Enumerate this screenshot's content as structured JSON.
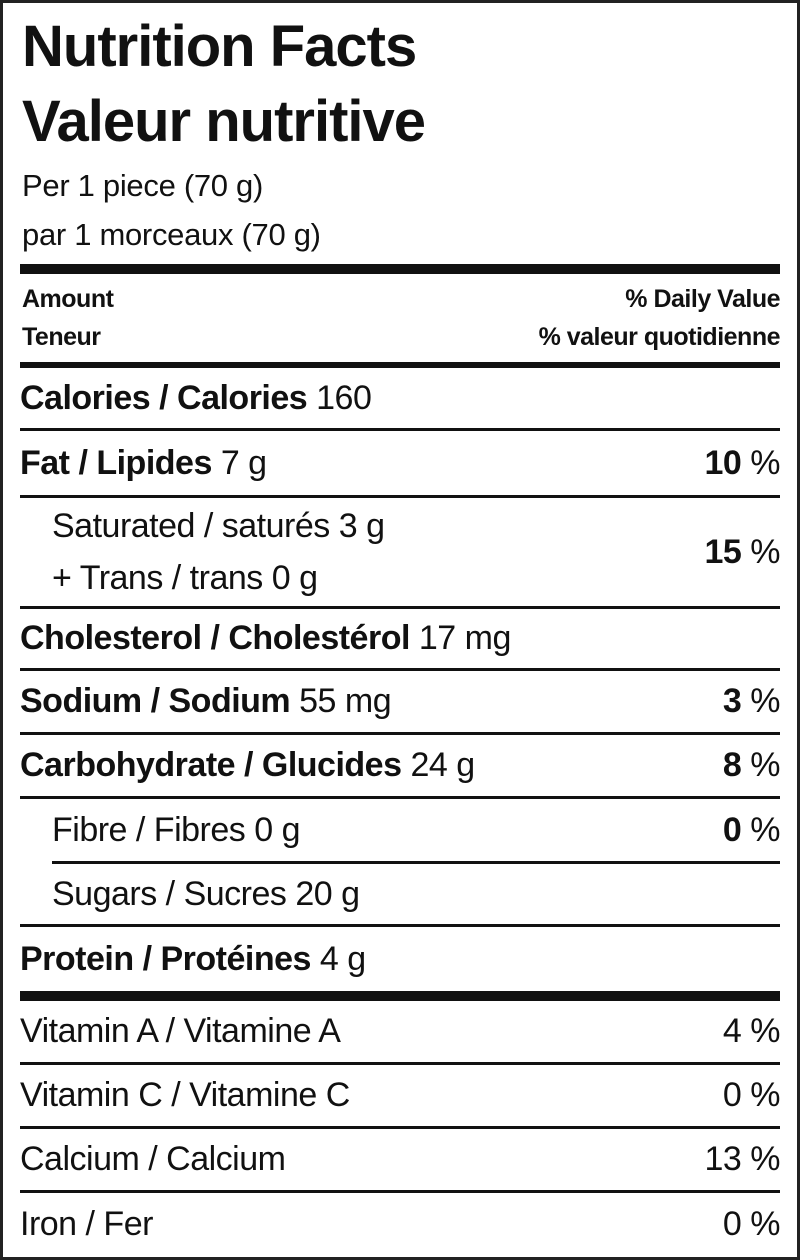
{
  "title_en": "Nutrition Facts",
  "title_fr": "Valeur nutritive",
  "serving_en": "Per 1 piece (70 g)",
  "serving_fr": "par 1 morceaux (70 g)",
  "header": {
    "amount_en": "Amount",
    "amount_fr": "Teneur",
    "dv_en": "% Daily Value",
    "dv_fr": "% valeur quotidienne"
  },
  "calories": {
    "label": "Calories / Calories",
    "value": "160"
  },
  "nutrients": [
    {
      "label": "Fat / Lipides",
      "amount": "7 g",
      "dv": "10",
      "unit": "%"
    },
    {
      "label": "Saturated / saturés",
      "amount": "3 g",
      "label2": "+ Trans / trans",
      "amount2": "0 g",
      "dv": "15",
      "unit": "%"
    },
    {
      "label": "Cholesterol / Cholestérol",
      "amount": "17 mg"
    },
    {
      "label": "Sodium / Sodium",
      "amount": "55 mg",
      "dv": "3",
      "unit": "%"
    },
    {
      "label": "Carbohydrate / Glucides",
      "amount": "24 g",
      "dv": "8",
      "unit": "%"
    },
    {
      "label": "Fibre / Fibres",
      "amount": "0 g",
      "dv": "0",
      "unit": "%"
    },
    {
      "label": "Sugars / Sucres",
      "amount": "20 g"
    },
    {
      "label": "Protein / Protéines",
      "amount": "4 g"
    }
  ],
  "vitamins": [
    {
      "label": "Vitamin A / Vitamine A",
      "dv": "4 %"
    },
    {
      "label": "Vitamin C / Vitamine C",
      "dv": "0 %"
    },
    {
      "label": "Calcium / Calcium",
      "dv": "13 %"
    },
    {
      "label": "Iron / Fer",
      "dv": "0 %"
    }
  ]
}
